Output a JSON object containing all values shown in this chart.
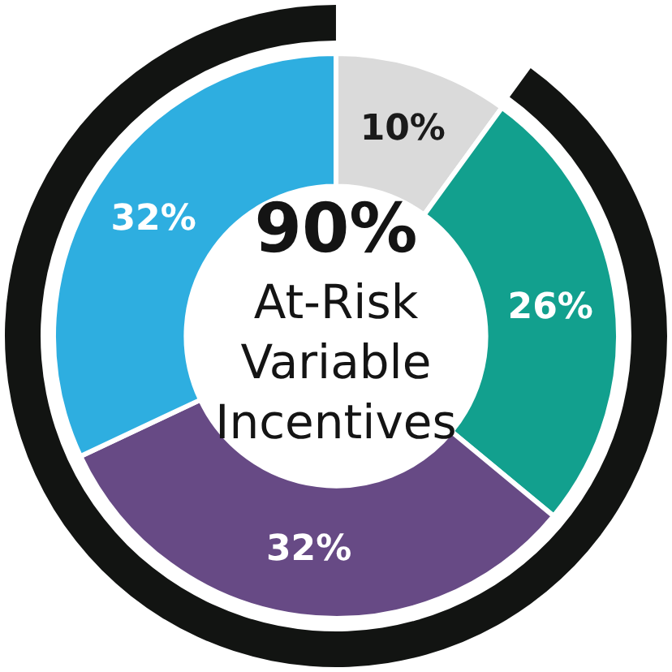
{
  "chart_data": {
    "type": "donut",
    "title": "90%",
    "subtitle": "At-Risk Variable Incentives",
    "categories": [
      null,
      null,
      null,
      null
    ],
    "values": [
      10,
      26,
      32,
      32
    ],
    "colors": [
      "#dadada",
      "#12a08e",
      "#674a85",
      "#2eaee0"
    ],
    "value_labels": [
      "10%",
      "26%",
      "32%",
      "32%"
    ]
  }
}
